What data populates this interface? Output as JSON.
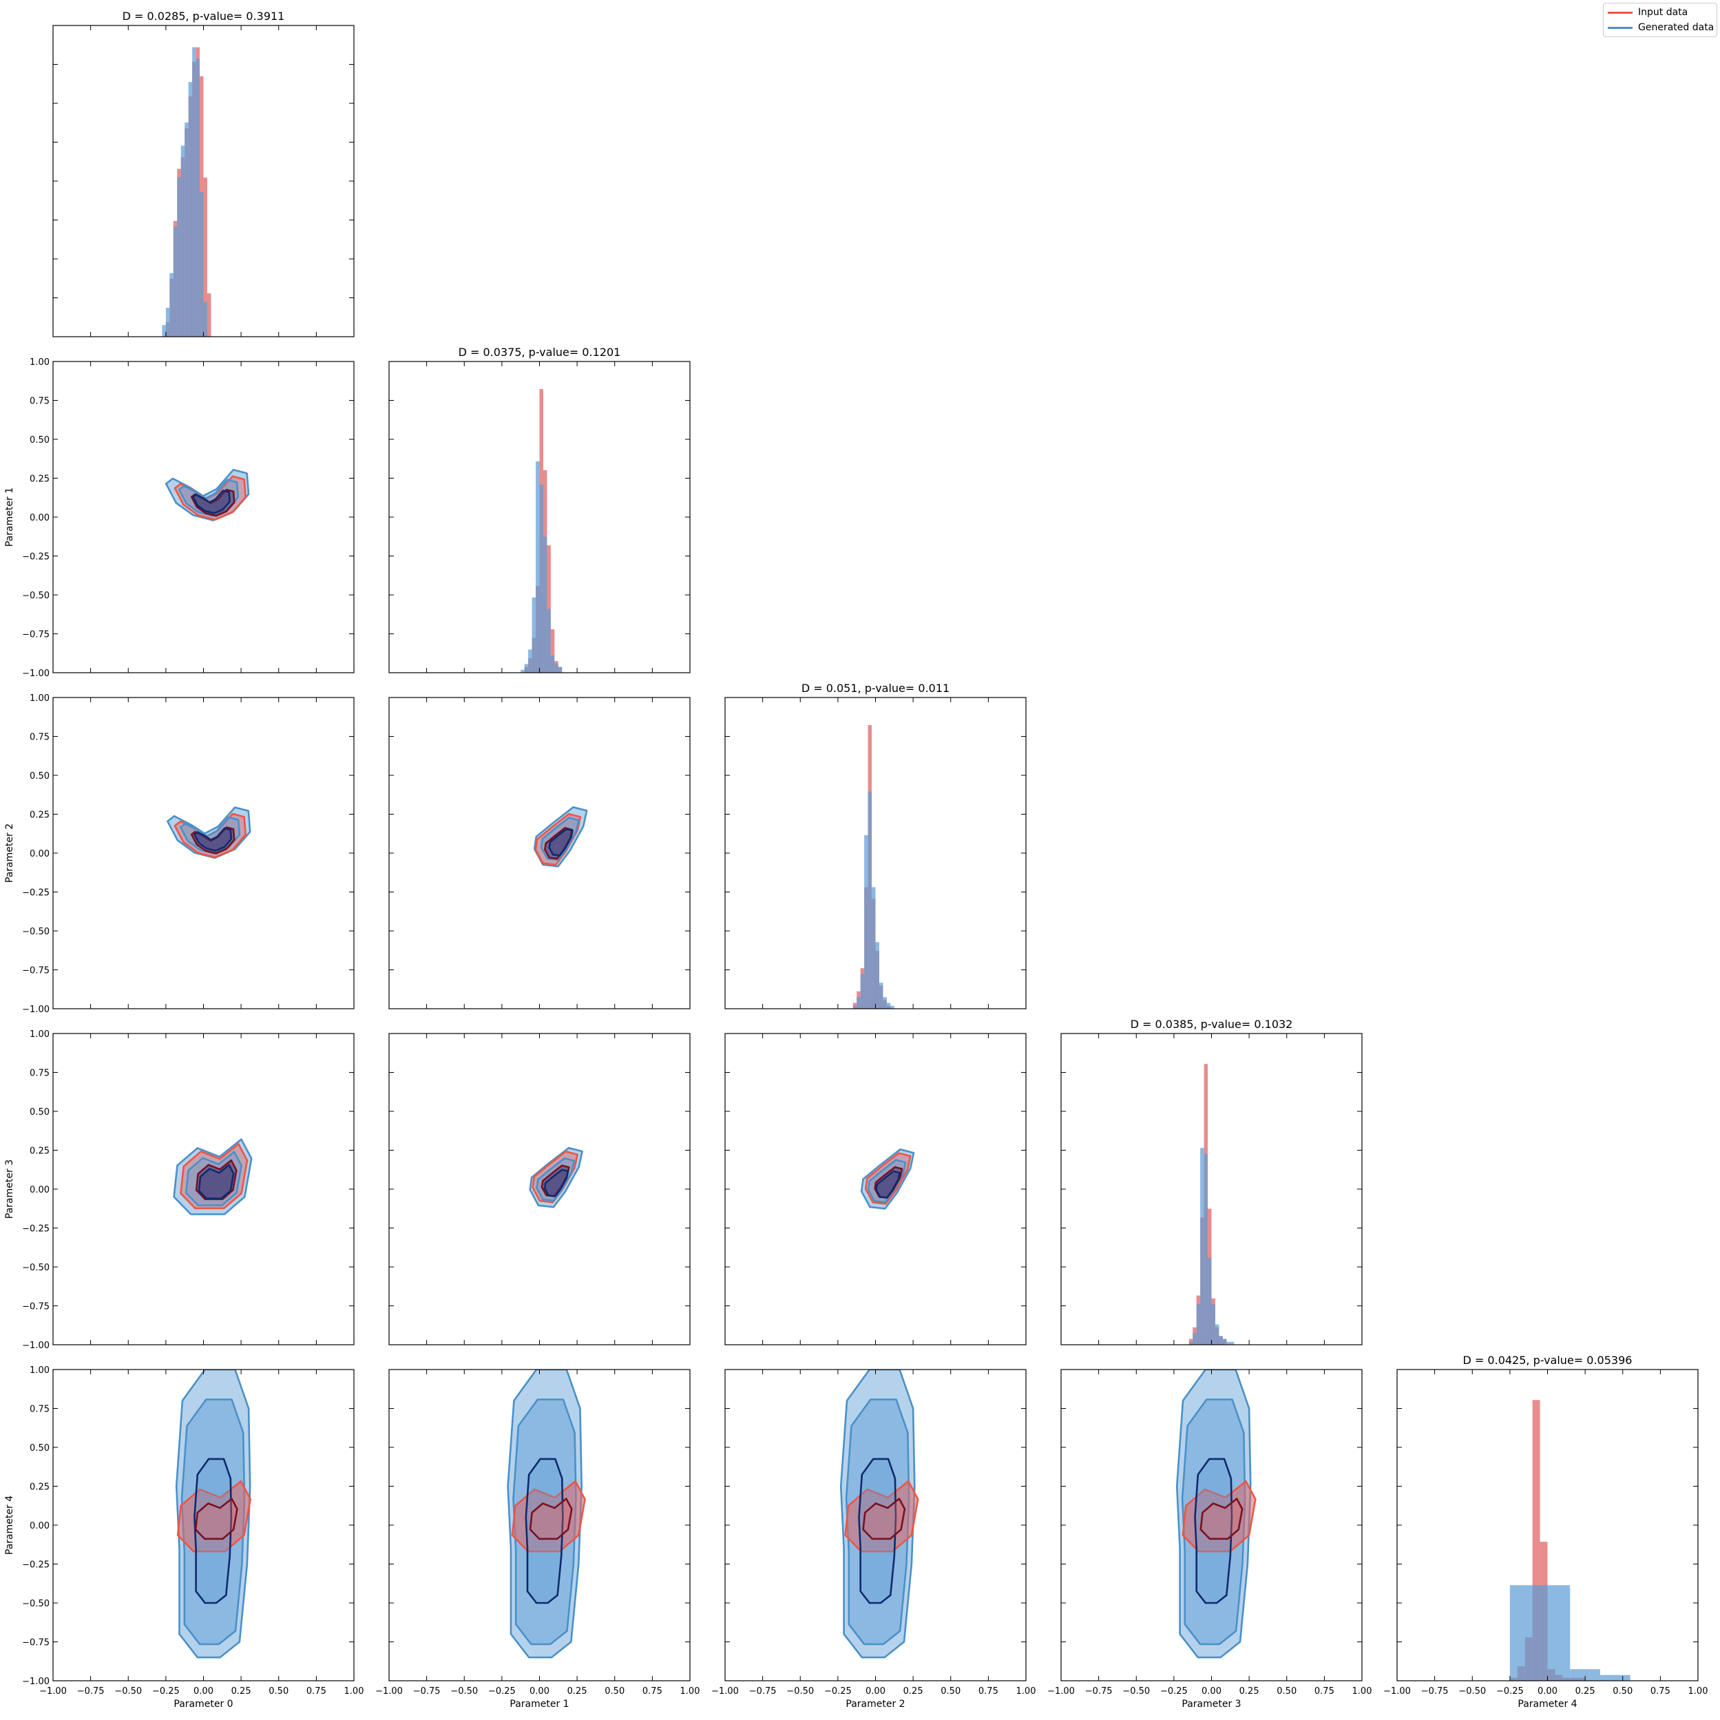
{
  "colors": {
    "input": "#ee5544",
    "input_fill": "#e06666",
    "generated": "#4a90c8",
    "generated_fill": "#5b9bd5",
    "inner_input": "#7a1020",
    "inner_generated": "#0f2a6e"
  },
  "legend": {
    "items": [
      {
        "label": "Input data",
        "color": "#ee5544"
      },
      {
        "label": "Generated data",
        "color": "#4a90c8"
      }
    ],
    "position": "top-right"
  },
  "chart_data": {
    "type": "corner",
    "axis_range": [
      -1.0,
      1.0
    ],
    "ticks": [
      -1.0,
      -0.75,
      -0.5,
      -0.25,
      0.0,
      0.25,
      0.5,
      0.75,
      1.0
    ],
    "tick_labels": [
      "−1.00",
      "−0.75",
      "−0.50",
      "−0.25",
      "0.00",
      "0.25",
      "0.50",
      "0.75",
      "1.00"
    ],
    "parameters": [
      "Parameter 0",
      "Parameter 1",
      "Parameter 2",
      "Parameter 3",
      "Parameter 4"
    ],
    "diagonal_titles": [
      "D = 0.0285, p-value= 0.3911",
      "D = 0.0375, p-value= 0.1201",
      "D = 0.051, p-value= 0.011",
      "D = 0.0385, p-value= 0.1032",
      "D = 0.0425, p-value= 0.05396"
    ],
    "histograms": [
      {
        "name": "Parameter 0",
        "input": {
          "x0": -0.25,
          "width": 0.025,
          "heights": [
            0.05,
            0.2,
            0.4,
            0.58,
            0.62,
            0.72,
            0.83,
            0.95,
            1.0,
            0.9,
            0.55,
            0.15
          ]
        },
        "generated": {
          "x0": -0.275,
          "width": 0.025,
          "heights": [
            0.04,
            0.1,
            0.22,
            0.38,
            0.55,
            0.66,
            0.74,
            0.88,
            1.0,
            0.96,
            0.5,
            0.12
          ]
        }
      },
      {
        "name": "Parameter 1",
        "input": {
          "x0": -0.1,
          "width": 0.025,
          "heights": [
            0.02,
            0.05,
            0.12,
            0.3,
            0.98,
            0.7,
            0.44,
            0.15,
            0.04,
            0.02
          ]
        },
        "generated": {
          "x0": -0.125,
          "width": 0.025,
          "heights": [
            0.01,
            0.03,
            0.08,
            0.26,
            0.73,
            0.65,
            0.47,
            0.22,
            0.06,
            0.03,
            0.02
          ]
        }
      },
      {
        "name": "Parameter 2",
        "input": {
          "x0": -0.15,
          "width": 0.025,
          "heights": [
            0.02,
            0.06,
            0.14,
            0.42,
            0.98,
            0.38,
            0.2,
            0.08,
            0.03,
            0.01
          ]
        },
        "generated": {
          "x0": -0.15,
          "width": 0.025,
          "heights": [
            0.01,
            0.04,
            0.12,
            0.6,
            0.75,
            0.42,
            0.23,
            0.09,
            0.04,
            0.02,
            0.01
          ]
        }
      },
      {
        "name": "Parameter 3",
        "input": {
          "x0": -0.15,
          "width": 0.025,
          "heights": [
            0.02,
            0.06,
            0.17,
            0.44,
            0.97,
            0.47,
            0.16,
            0.06,
            0.03,
            0.02
          ]
        },
        "generated": {
          "x0": -0.15,
          "width": 0.025,
          "heights": [
            0.01,
            0.04,
            0.14,
            0.68,
            0.66,
            0.3,
            0.14,
            0.07,
            0.03,
            0.02,
            0.01,
            0.01
          ]
        }
      },
      {
        "name": "Parameter 4",
        "input": {
          "x0": -0.25,
          "width": 0.05,
          "heights": [
            0.01,
            0.05,
            0.15,
            0.97,
            0.48,
            0.04,
            0.02,
            0.01,
            0.01,
            0.01
          ]
        },
        "generated": {
          "x0": -0.25,
          "width": 0.2,
          "heights": [
            0.33,
            0.33,
            0.04,
            0.02
          ]
        }
      }
    ],
    "contours": [
      {
        "x": "Parameter 0",
        "y": "Parameter 1",
        "generated_center": [
          0.02,
          0.08
        ],
        "input_center": [
          0.04,
          0.07
        ],
        "shape": "crescent"
      },
      {
        "x": "Parameter 0",
        "y": "Parameter 2",
        "generated_center": [
          0.03,
          0.07
        ],
        "input_center": [
          0.04,
          0.06
        ],
        "shape": "crescent"
      },
      {
        "x": "Parameter 1",
        "y": "Parameter 2",
        "generated_center": [
          0.09,
          0.06
        ],
        "input_center": [
          0.08,
          0.05
        ],
        "shape": "tilted"
      },
      {
        "x": "Parameter 0",
        "y": "Parameter 3",
        "generated_center": [
          0.05,
          0.04
        ],
        "input_center": [
          0.06,
          0.05
        ],
        "shape": "blob"
      },
      {
        "x": "Parameter 1",
        "y": "Parameter 3",
        "generated_center": [
          0.06,
          0.03
        ],
        "input_center": [
          0.06,
          0.04
        ],
        "shape": "tilted"
      },
      {
        "x": "Parameter 2",
        "y": "Parameter 3",
        "generated_center": [
          0.03,
          0.02
        ],
        "input_center": [
          0.04,
          0.03
        ],
        "shape": "tilted"
      },
      {
        "x": "Parameter 0",
        "y": "Parameter 4",
        "generated_center": [
          0.06,
          0.05
        ],
        "input_center": [
          0.06,
          0.02
        ],
        "shape": "tall"
      },
      {
        "x": "Parameter 1",
        "y": "Parameter 4",
        "generated_center": [
          0.03,
          0.05
        ],
        "input_center": [
          0.05,
          0.02
        ],
        "shape": "tall"
      },
      {
        "x": "Parameter 2",
        "y": "Parameter 4",
        "generated_center": [
          0.01,
          0.05
        ],
        "input_center": [
          0.03,
          0.02
        ],
        "shape": "tall"
      },
      {
        "x": "Parameter 3",
        "y": "Parameter 4",
        "generated_center": [
          0.01,
          0.05
        ],
        "input_center": [
          0.04,
          0.02
        ],
        "shape": "tall"
      }
    ]
  }
}
